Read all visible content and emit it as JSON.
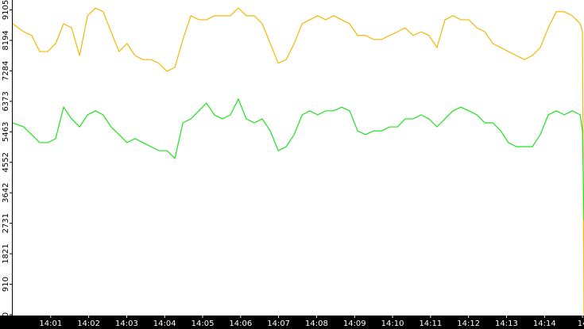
{
  "chart_data": {
    "type": "line",
    "x": [
      0,
      0.29,
      0.5,
      0.71,
      0.92,
      1.13,
      1.34,
      1.55,
      1.76,
      1.97,
      2.18,
      2.38,
      2.59,
      2.8,
      3.01,
      3.22,
      3.43,
      3.64,
      3.85,
      4.06,
      4.27,
      4.48,
      4.69,
      4.9,
      5.1,
      5.31,
      5.52,
      5.73,
      5.94,
      6.15,
      6.36,
      6.57,
      6.78,
      6.99,
      7.2,
      7.41,
      7.62,
      7.82,
      8.03,
      8.24,
      8.45,
      8.66,
      8.87,
      9.08,
      9.29,
      9.5,
      9.71,
      9.92,
      10.13,
      10.33,
      10.54,
      10.75,
      10.96,
      11.17,
      11.38,
      11.59,
      11.8,
      12.01,
      12.22,
      12.43,
      12.64,
      12.85,
      13.05,
      13.26,
      13.47,
      13.68,
      13.89,
      14.1,
      14.31,
      14.52,
      14.73,
      14.94,
      15.0,
      15.04
    ],
    "series": [
      {
        "color": "#f2b705",
        "values": [
          8690,
          8450,
          8340,
          7860,
          7860,
          8100,
          8690,
          8570,
          7740,
          8930,
          9160,
          9050,
          8450,
          7860,
          8100,
          7740,
          7620,
          7620,
          7510,
          7270,
          7390,
          8220,
          8930,
          8810,
          8810,
          8930,
          8930,
          8930,
          9160,
          8930,
          8930,
          8690,
          8100,
          7510,
          7620,
          8100,
          8690,
          8810,
          8930,
          8810,
          8930,
          8810,
          8690,
          8340,
          8340,
          8220,
          8220,
          8340,
          8450,
          8570,
          8340,
          8450,
          8340,
          7980,
          8810,
          8930,
          8810,
          8810,
          8570,
          8450,
          8100,
          7980,
          7860,
          7740,
          7620,
          7740,
          7980,
          8570,
          9050,
          9050,
          8930,
          8690,
          8450,
          0
        ]
      },
      {
        "color": "#1fe01f",
        "values": [
          5730,
          5610,
          5380,
          5140,
          5140,
          5260,
          6200,
          5850,
          5610,
          5970,
          6090,
          5970,
          5610,
          5380,
          5140,
          5260,
          5140,
          5020,
          4900,
          4900,
          4670,
          5730,
          5850,
          6090,
          6320,
          5970,
          5850,
          5970,
          6440,
          5850,
          5730,
          5850,
          5490,
          4900,
          5020,
          5380,
          5970,
          6090,
          5970,
          6090,
          6090,
          6200,
          6090,
          5490,
          5380,
          5490,
          5490,
          5610,
          5610,
          5850,
          5850,
          5970,
          5850,
          5610,
          5850,
          6090,
          6200,
          6090,
          5970,
          5730,
          5730,
          5490,
          5140,
          5020,
          5020,
          5020,
          5380,
          5970,
          6090,
          5970,
          6090,
          5970,
          5490,
          2820
        ]
      }
    ],
    "xlim": [
      0,
      15.04
    ],
    "xticks": [
      {
        "value": 1,
        "label": "14:01"
      },
      {
        "value": 2,
        "label": "14:02"
      },
      {
        "value": 3,
        "label": "14:03"
      },
      {
        "value": 4,
        "label": "14:04"
      },
      {
        "value": 5,
        "label": "14:05"
      },
      {
        "value": 6,
        "label": "14:06"
      },
      {
        "value": 7,
        "label": "14:07"
      },
      {
        "value": 8,
        "label": "14:08"
      },
      {
        "value": 9,
        "label": "14:09"
      },
      {
        "value": 10,
        "label": "14:10"
      },
      {
        "value": 11,
        "label": "14:11"
      },
      {
        "value": 12,
        "label": "14:12"
      },
      {
        "value": 13,
        "label": "14:13"
      },
      {
        "value": 14,
        "label": "14:14"
      },
      {
        "value": 15,
        "label": "14"
      }
    ],
    "ylim": [
      0,
      9400
    ],
    "yticks": [
      0,
      910,
      1821,
      2731,
      3642,
      4552,
      5463,
      6373,
      7284,
      8194,
      9105
    ]
  }
}
